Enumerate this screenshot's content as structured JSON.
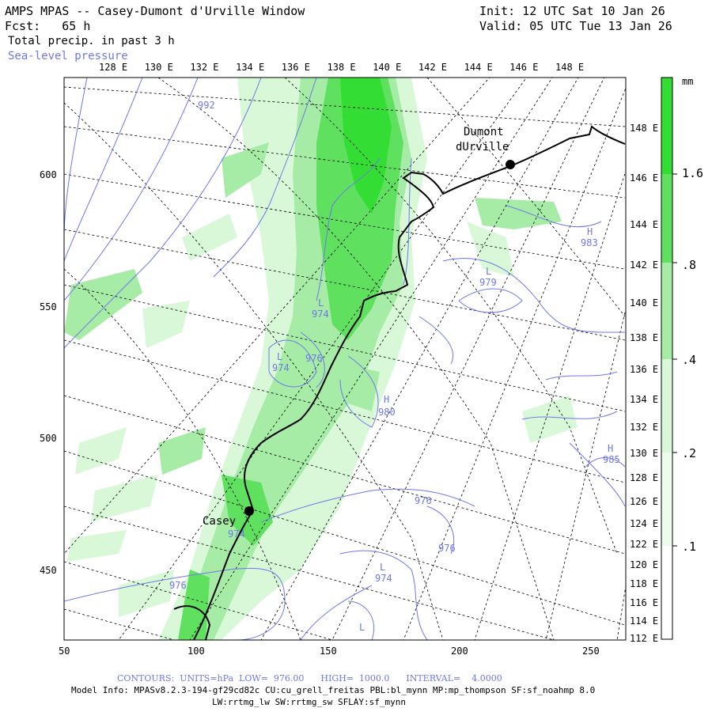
{
  "header": {
    "title": "AMPS MPAS -- Casey-Dumont d'Urville Window",
    "fcst_label": "Fcst:",
    "fcst_value": "65 h",
    "field1": "Total precip. in past 3 h",
    "field2": "Sea-level pressure",
    "init": "Init: 12 UTC Sat 10 Jan 26",
    "valid": "Valid: 05 UTC Tue 13 Jan 26"
  },
  "map": {
    "top_lon_labels": [
      "128 E",
      "130 E",
      "132 E",
      "134 E",
      "136 E",
      "138 E",
      "140 E",
      "142 E",
      "144 E",
      "146 E",
      "148 E"
    ],
    "right_lon_labels": [
      "148 E",
      "146 E",
      "144 E",
      "142 E",
      "140 E",
      "138 E",
      "136 E",
      "134 E",
      "132 E",
      "130 E",
      "128 E",
      "126 E",
      "124 E",
      "122 E",
      "120 E",
      "118 E",
      "116 E",
      "114 E",
      "112 E"
    ],
    "x_ticks": [
      "50",
      "100",
      "150",
      "200",
      "250"
    ],
    "y_ticks": [
      "600",
      "550",
      "500",
      "450"
    ],
    "stations": [
      {
        "name": "Casey",
        "value": "974"
      },
      {
        "name_line1": "Dumont",
        "name_line2": "dUrville"
      }
    ],
    "pressure_labels": [
      {
        "text": "992"
      },
      {
        "text": "L"
      },
      {
        "text": "974"
      },
      {
        "text": "L"
      },
      {
        "text": "974"
      },
      {
        "text": "976"
      },
      {
        "text": "H"
      },
      {
        "text": "980"
      },
      {
        "text": "H"
      },
      {
        "text": "983"
      },
      {
        "text": "L"
      },
      {
        "text": "979"
      },
      {
        "text": "H"
      },
      {
        "text": "985"
      },
      {
        "text": "976"
      },
      {
        "text": "976"
      },
      {
        "text": "L"
      },
      {
        "text": "974"
      },
      {
        "text": "976"
      },
      {
        "text": "L"
      }
    ],
    "colors": {
      "contour": "#6f78e8",
      "precip_light": "#d8f8d8",
      "precip_mid": "#a6eca6",
      "precip_heavy": "#5fe05f",
      "precip_max": "#33dd33"
    }
  },
  "colorbar": {
    "unit": "mm",
    "labels": [
      "1.6",
      ".8",
      ".4",
      ".2",
      ".1"
    ]
  },
  "footer": {
    "contours": "CONTOURS:  UNITS=hPa  LOW=  976.00      HIGH=  1000.0      INTERVAL=    4.0000",
    "model_info": "Model Info: MPASv8.2.3-194-gf29cd82c CU:cu_grell_freitas PBL:bl_mynn MP:mp_thompson SF:sf_noahmp 8.0",
    "model_info2": "LW:rrtmg_lw SW:rrtmg_sw SFLAY:sf_mynn"
  }
}
